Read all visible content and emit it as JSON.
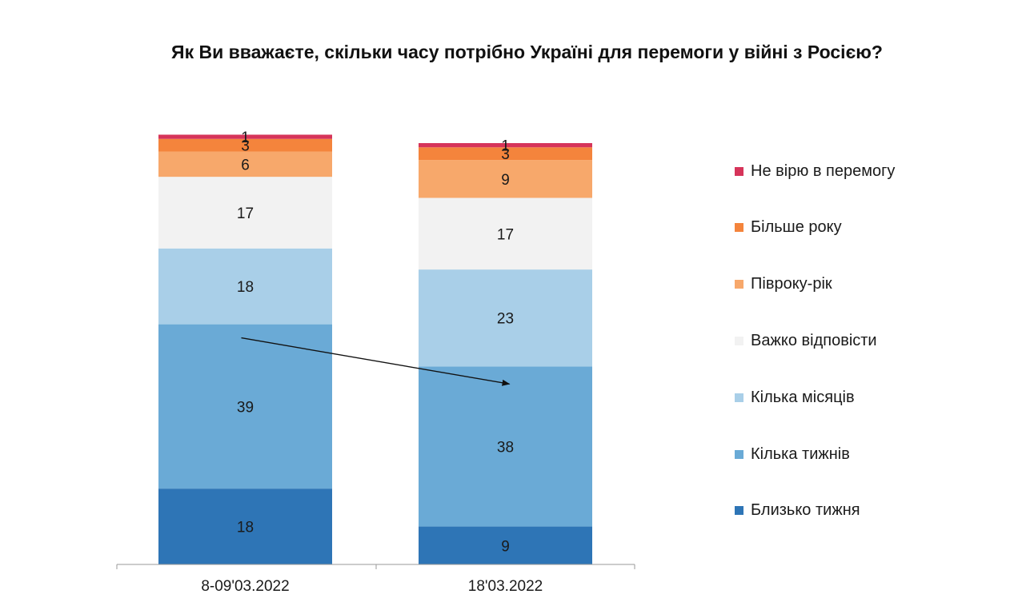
{
  "chart_data": {
    "type": "bar",
    "stacked": true,
    "title": "Як Ви вважаєте, скільки часу потрібно Україні для перемоги у війні з Росією?",
    "categories": [
      "8-09'03.2022",
      "18'03.2022"
    ],
    "series": [
      {
        "name": "Близько тижня",
        "values": [
          18,
          9
        ],
        "color": "#2e75b6"
      },
      {
        "name": "Кілька тижнів",
        "values": [
          39,
          38
        ],
        "color": "#6aaad6"
      },
      {
        "name": "Кілька місяців",
        "values": [
          18,
          23
        ],
        "color": "#a9cfe8"
      },
      {
        "name": "Важко відповісти",
        "values": [
          17,
          17
        ],
        "color": "#f2f2f2"
      },
      {
        "name": "Півроку-рік",
        "values": [
          6,
          9
        ],
        "color": "#f7a86b"
      },
      {
        "name": "Більше року",
        "values": [
          3,
          3
        ],
        "color": "#f4843c"
      },
      {
        "name": "Не вірю в перемогу",
        "values": [
          1,
          1
        ],
        "color": "#d6345a"
      }
    ],
    "legend_order": [
      "Не вірю в перемогу",
      "Більше року",
      "Півроку-рік",
      "Важко відповісти",
      "Кілька місяців",
      "Кілька тижнів",
      "Близько тижня"
    ],
    "legend_position": "right",
    "data_labels": true,
    "annotation": "arrow from Кілька тижнів segment of first bar to second bar"
  }
}
